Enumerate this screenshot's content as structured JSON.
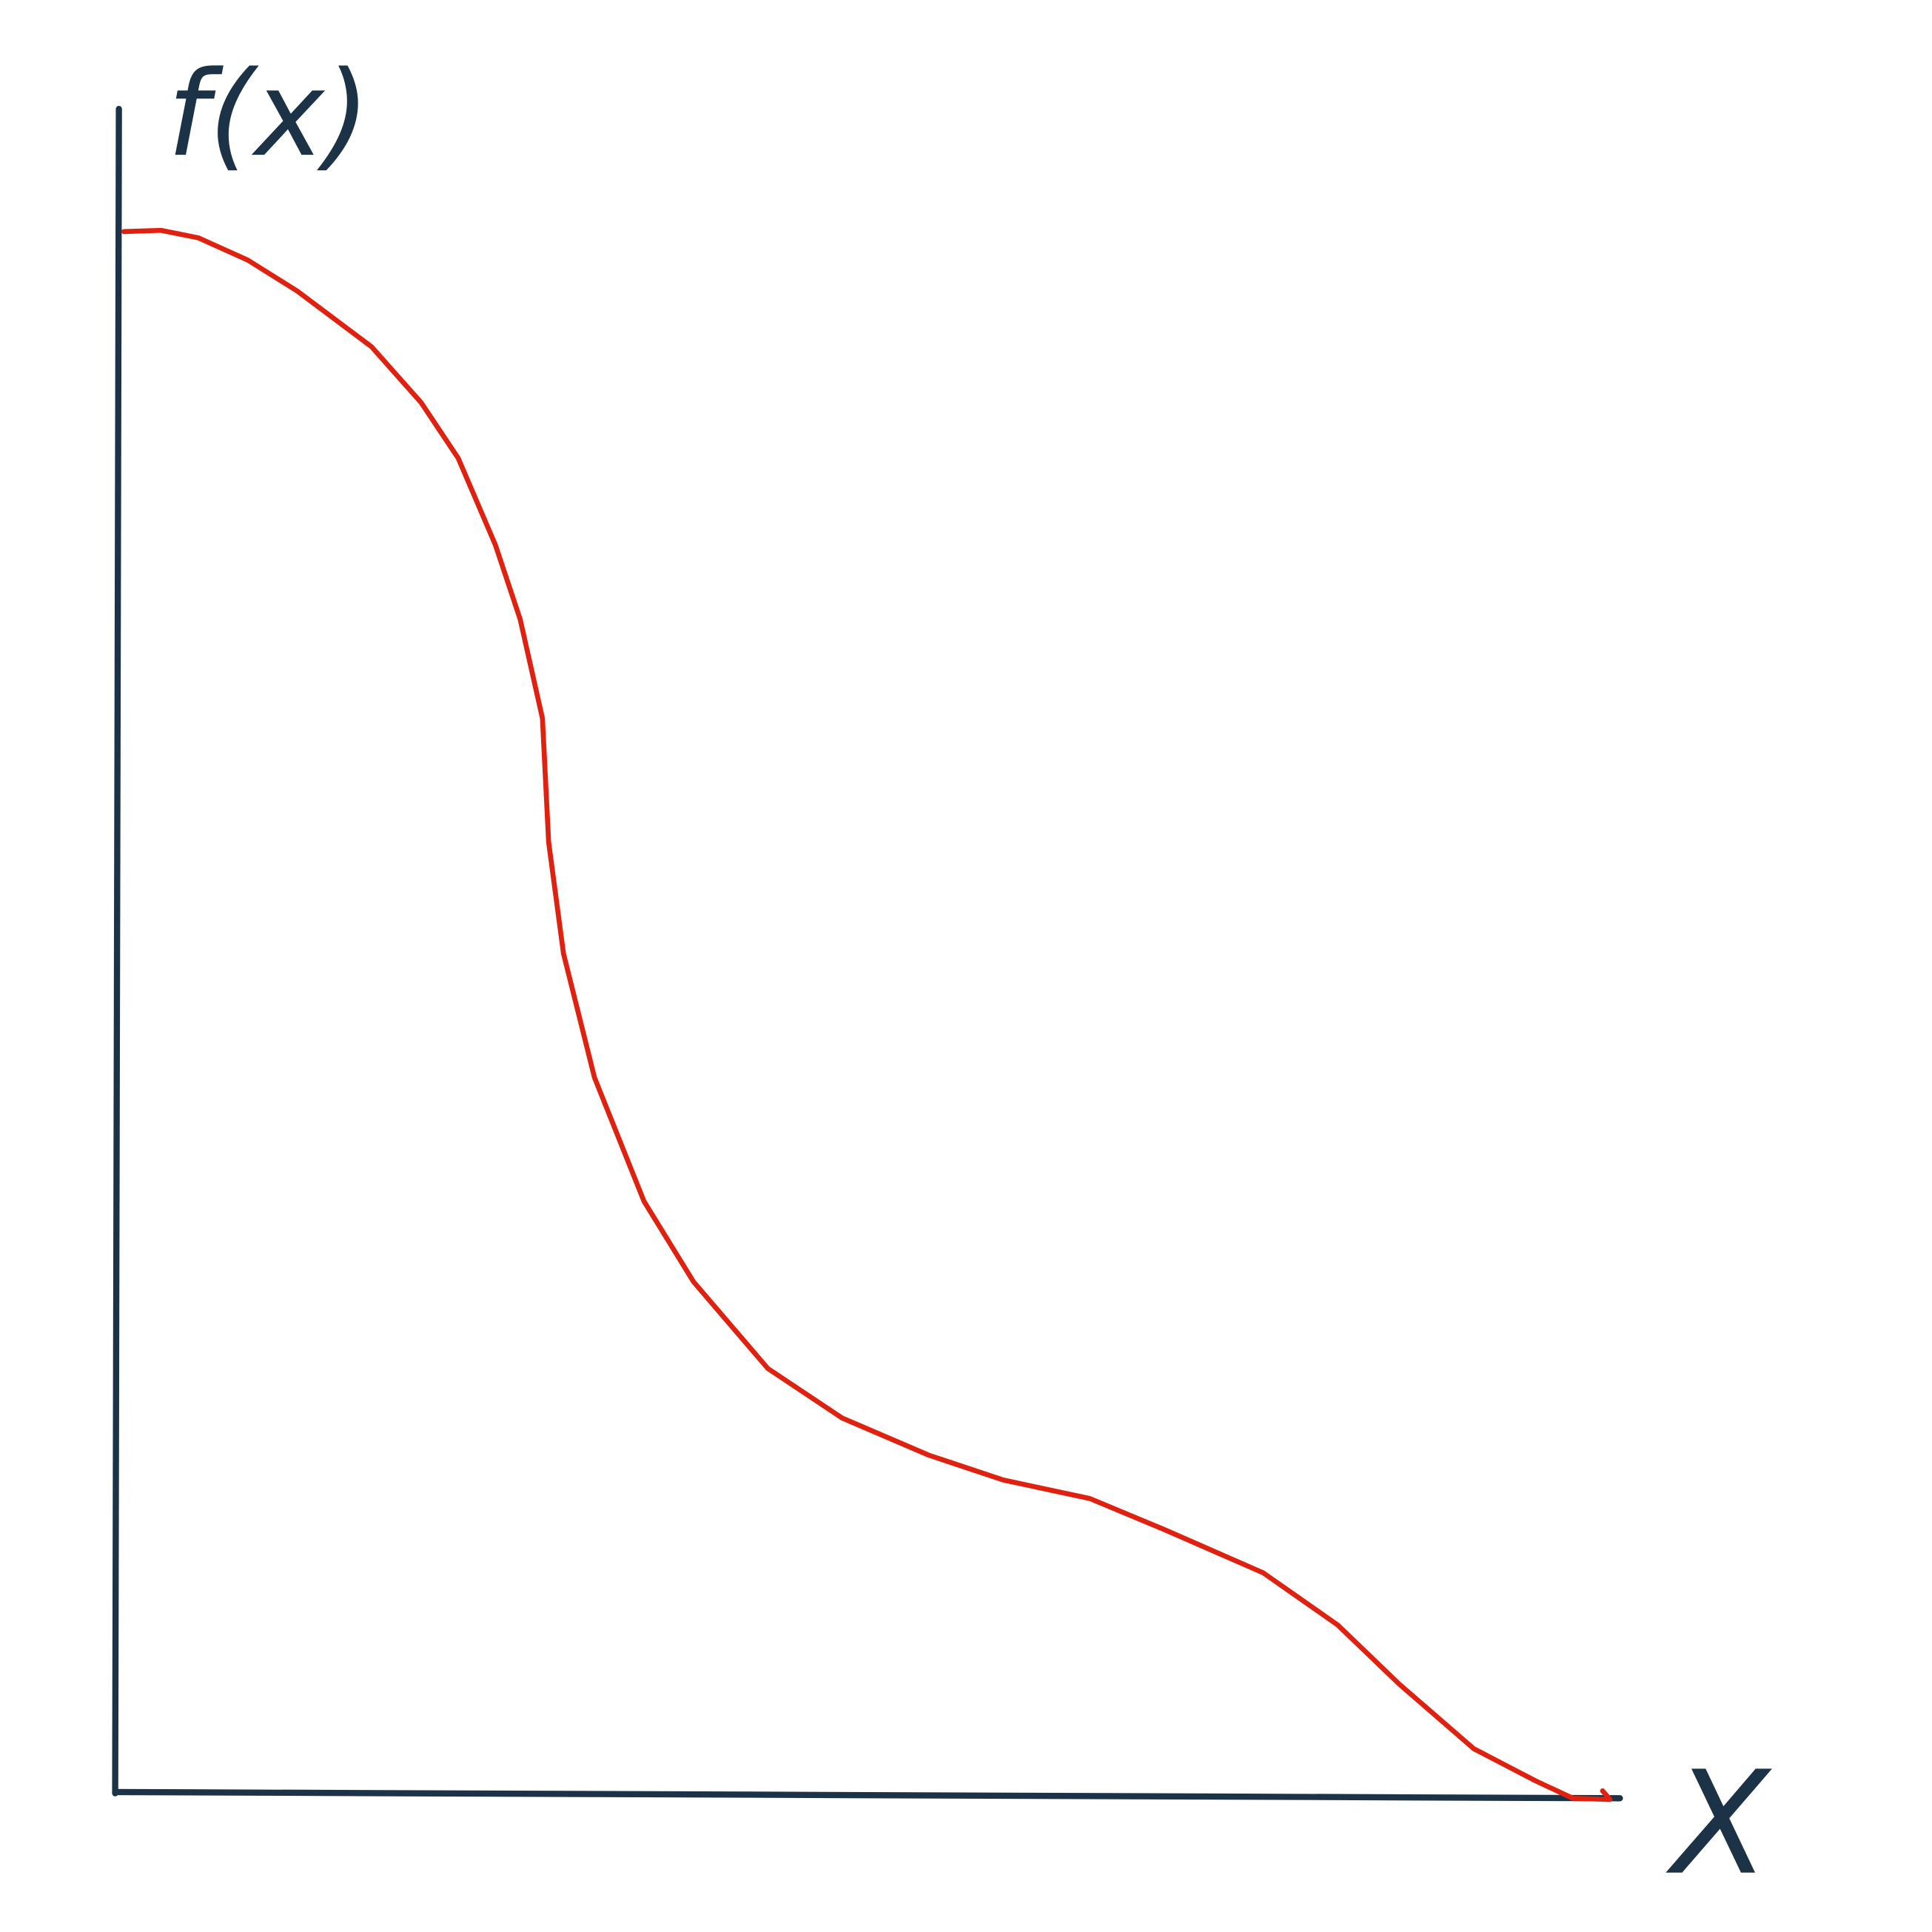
{
  "y_axis_label": "f(x)",
  "x_axis_label": "X"
}
